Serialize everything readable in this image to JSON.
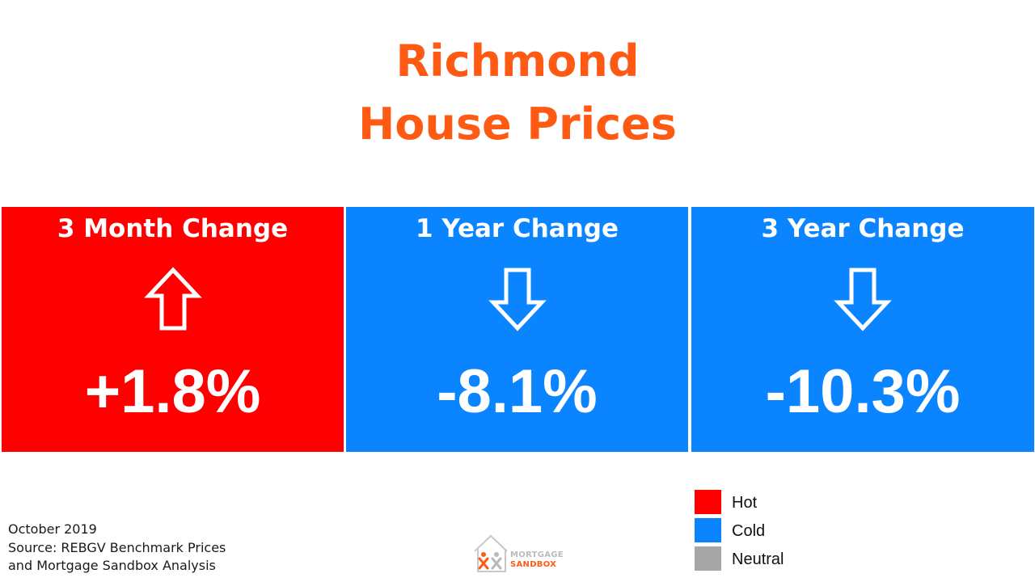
{
  "title": {
    "line1": "Richmond",
    "line2": "House Prices"
  },
  "colors": {
    "title": "#ff5a14",
    "hot": "#ff0000",
    "cold": "#0a84ff",
    "neutral": "#a6a6a6"
  },
  "panels": [
    {
      "title": "3 Month Change",
      "value": "+1.8%",
      "arrow": "up-arrow-icon",
      "status": "Hot"
    },
    {
      "title": "1 Year Change",
      "value": "-8.1%",
      "arrow": "down-arrow-icon",
      "status": "Cold"
    },
    {
      "title": "3 Year Change",
      "value": "-10.3%",
      "arrow": "down-arrow-icon",
      "status": "Cold"
    }
  ],
  "legend": [
    {
      "label": "Hot",
      "color": "#ff0000"
    },
    {
      "label": "Cold",
      "color": "#0a84ff"
    },
    {
      "label": "Neutral",
      "color": "#a6a6a6"
    }
  ],
  "footnote": {
    "date": "October 2019",
    "source_line1": "Source: REBGV Benchmark Prices",
    "source_line2": "and Mortgage Sandbox Analysis"
  },
  "logo": {
    "line1": "MORTGAGE",
    "line2": "SANDBOX"
  }
}
